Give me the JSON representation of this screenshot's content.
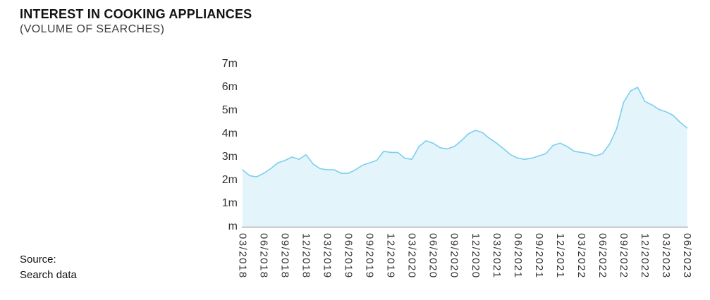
{
  "header": {
    "title": "INTEREST IN COOKING APPLIANCES",
    "subtitle": "(VOLUME OF SEARCHES)"
  },
  "source": {
    "line1": "Source:",
    "line2": "Search data"
  },
  "chart_data": {
    "type": "area",
    "title": "INTEREST IN COOKING APPLIANCES (VOLUME OF SEARCHES)",
    "unit": "millions of searches per month",
    "x": [
      "03/2018",
      "04/2018",
      "05/2018",
      "06/2018",
      "07/2018",
      "08/2018",
      "09/2018",
      "10/2018",
      "11/2018",
      "12/2018",
      "01/2019",
      "02/2019",
      "03/2019",
      "04/2019",
      "05/2019",
      "06/2019",
      "07/2019",
      "08/2019",
      "09/2019",
      "10/2019",
      "11/2019",
      "12/2019",
      "01/2020",
      "02/2020",
      "03/2020",
      "04/2020",
      "05/2020",
      "06/2020",
      "07/2020",
      "08/2020",
      "09/2020",
      "10/2020",
      "11/2020",
      "12/2020",
      "01/2021",
      "02/2021",
      "03/2021",
      "04/2021",
      "05/2021",
      "06/2021",
      "07/2021",
      "08/2021",
      "09/2021",
      "10/2021",
      "11/2021",
      "12/2021",
      "01/2022",
      "02/2022",
      "03/2022",
      "04/2022",
      "05/2022",
      "06/2022",
      "07/2022",
      "08/2022",
      "09/2022",
      "10/2022",
      "11/2022",
      "12/2022",
      "01/2023",
      "02/2023",
      "03/2023",
      "04/2023",
      "05/2023",
      "06/2023"
    ],
    "values": [
      2.45,
      2.2,
      2.15,
      2.3,
      2.5,
      2.75,
      2.85,
      3.0,
      2.9,
      3.1,
      2.7,
      2.5,
      2.45,
      2.45,
      2.3,
      2.3,
      2.45,
      2.65,
      2.75,
      2.85,
      3.25,
      3.2,
      3.2,
      2.95,
      2.9,
      3.45,
      3.7,
      3.6,
      3.4,
      3.35,
      3.45,
      3.7,
      4.0,
      4.15,
      4.05,
      3.8,
      3.6,
      3.35,
      3.1,
      2.95,
      2.9,
      2.95,
      3.05,
      3.15,
      3.5,
      3.6,
      3.45,
      3.25,
      3.2,
      3.15,
      3.05,
      3.15,
      3.55,
      4.2,
      5.35,
      5.85,
      6.0,
      5.4,
      5.25,
      5.05,
      4.95,
      4.8,
      4.5,
      4.25
    ],
    "x_tick_labels": [
      "03/2018",
      "06/2018",
      "09/2018",
      "12/2018",
      "03/2019",
      "06/2019",
      "09/2019",
      "12/2019",
      "03/2020",
      "06/2020",
      "09/2020",
      "12/2020",
      "03/2021",
      "06/2021",
      "09/2021",
      "12/2021",
      "03/2022",
      "06/2022",
      "09/2022",
      "12/2022",
      "03/2023",
      "06/2023"
    ],
    "y_ticks": [
      "7m",
      "6m",
      "5m",
      "4m",
      "3m",
      "2m",
      "1m",
      "m"
    ],
    "y_tick_values": [
      7,
      6,
      5,
      4,
      3,
      2,
      1,
      0
    ],
    "ylim": [
      0,
      7
    ],
    "grid": false,
    "legend": false,
    "colors": {
      "line": "#7CCFEE",
      "fill": "#E3F4FB",
      "axis": "#9E9E9E",
      "tick_text": "#333333",
      "title_text": "#121212"
    }
  }
}
